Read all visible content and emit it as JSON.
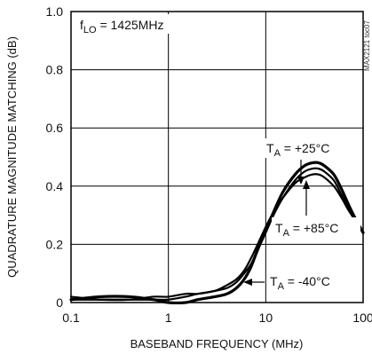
{
  "chart_data": {
    "type": "line",
    "title": "",
    "xlabel": "BASEBAND FREQUENCY (MHz)",
    "ylabel": "QUADRATURE MAGNITUDE MATCHING (dB)",
    "xscale": "log",
    "xlim": [
      0.1,
      100
    ],
    "ylim": [
      0,
      1.0
    ],
    "x_ticks": [
      0.1,
      1,
      10,
      100
    ],
    "x_tick_labels": [
      "0.1",
      "1",
      "10",
      "100"
    ],
    "y_ticks": [
      0,
      0.2,
      0.4,
      0.6,
      0.8,
      1.0
    ],
    "y_tick_labels": [
      "0",
      "0.2",
      "0.4",
      "0.6",
      "0.8",
      "1.0"
    ],
    "grid": true,
    "series": [
      {
        "name": "TA = +25°C",
        "color": "#000000",
        "x": [
          0.1,
          0.2,
          0.4,
          0.7,
          1,
          1.5,
          2,
          3,
          4,
          5,
          6,
          7,
          8,
          10,
          12,
          15,
          20,
          25,
          30,
          35,
          40,
          50,
          60,
          70,
          80,
          100
        ],
        "y": [
          0.01,
          0.02,
          0.02,
          0.01,
          0.0,
          0.0,
          0.01,
          0.02,
          0.03,
          0.05,
          0.08,
          0.12,
          0.17,
          0.25,
          0.31,
          0.38,
          0.44,
          0.47,
          0.48,
          0.48,
          0.47,
          0.44,
          0.39,
          0.34,
          0.3,
          0.24
        ]
      },
      {
        "name": "TA = +85°C",
        "color": "#000000",
        "x": [
          0.1,
          0.2,
          0.4,
          0.7,
          1,
          1.5,
          2,
          3,
          4,
          5,
          6,
          7,
          8,
          10,
          12,
          15,
          20,
          25,
          30,
          35,
          40,
          50,
          60,
          70,
          80,
          100
        ],
        "y": [
          0.01,
          0.01,
          0.01,
          0.01,
          0.01,
          0.02,
          0.03,
          0.04,
          0.06,
          0.08,
          0.11,
          0.15,
          0.19,
          0.26,
          0.31,
          0.36,
          0.41,
          0.43,
          0.44,
          0.44,
          0.43,
          0.4,
          0.36,
          0.32,
          0.29,
          0.24
        ]
      },
      {
        "name": "TA = -40°C",
        "color": "#000000",
        "x": [
          0.1,
          0.2,
          0.4,
          0.7,
          1,
          1.5,
          2,
          3,
          4,
          5,
          6,
          7,
          8,
          10,
          12,
          15,
          20,
          25,
          30,
          35,
          40,
          50,
          60,
          70,
          80,
          100
        ],
        "y": [
          0.02,
          0.01,
          0.01,
          0.02,
          0.02,
          0.03,
          0.03,
          0.04,
          0.05,
          0.07,
          0.1,
          0.13,
          0.17,
          0.24,
          0.3,
          0.36,
          0.42,
          0.45,
          0.46,
          0.46,
          0.45,
          0.42,
          0.37,
          0.33,
          0.29,
          0.24
        ]
      }
    ],
    "annotations": [
      {
        "text_main": "f",
        "text_sub": "LO",
        "text_rest": " = 1425MHz"
      },
      {
        "text_main": "T",
        "text_sub": "A",
        "text_rest": " = +25°C"
      },
      {
        "text_main": "T",
        "text_sub": "A",
        "text_rest": " = +85°C"
      },
      {
        "text_main": "T",
        "text_sub": "A",
        "text_rest": " = -40°C"
      }
    ],
    "figure_code": "MAX2121 toc07"
  }
}
